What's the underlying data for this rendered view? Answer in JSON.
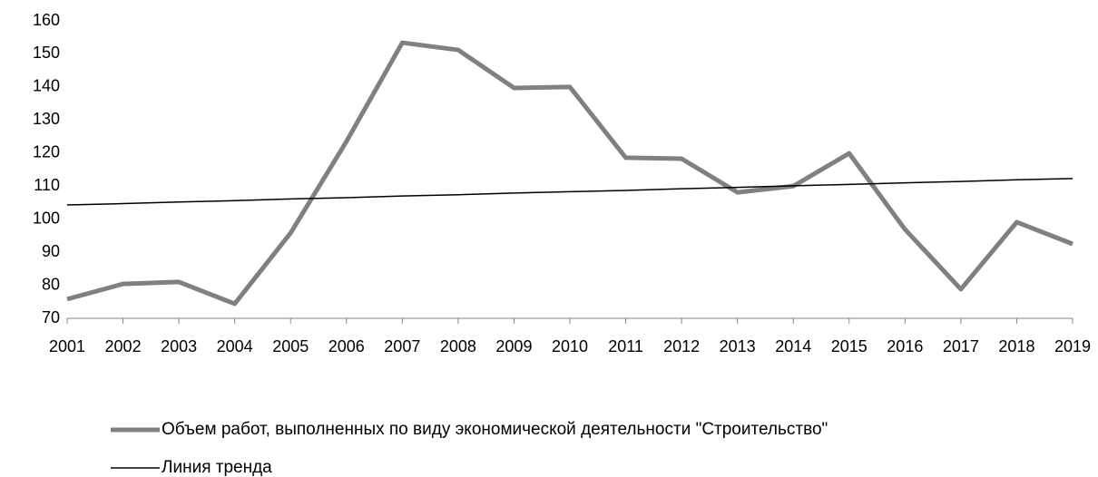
{
  "chart_data": {
    "type": "line",
    "categories": [
      "2001",
      "2002",
      "2003",
      "2004",
      "2005",
      "2006",
      "2007",
      "2008",
      "2009",
      "2010",
      "2011",
      "2012",
      "2013",
      "2014",
      "2015",
      "2016",
      "2017",
      "2018",
      "2019"
    ],
    "series": [
      {
        "name": "Объем работ, выполненных по виду экономической деятельности \"Строительство\"",
        "color": "#808080",
        "values": [
          75.8,
          80.4,
          81,
          74.4,
          95.8,
          123.5,
          153.4,
          151.2,
          139.7,
          140,
          118.6,
          118.3,
          108.1,
          110,
          119.9,
          96.9,
          78.8,
          99.1,
          92.5
        ]
      },
      {
        "name": "Линия тренда",
        "color": "#000000",
        "values": [
          104.3,
          104.7,
          105.2,
          105.6,
          106.1,
          106.5,
          107.0,
          107.4,
          107.9,
          108.3,
          108.7,
          109.2,
          109.6,
          110.1,
          110.5,
          111.0,
          111.4,
          111.9,
          112.3
        ]
      }
    ],
    "ylim": [
      70,
      160
    ],
    "yticks": [
      70,
      80,
      90,
      100,
      110,
      120,
      130,
      140,
      150,
      160
    ],
    "grid": false
  }
}
